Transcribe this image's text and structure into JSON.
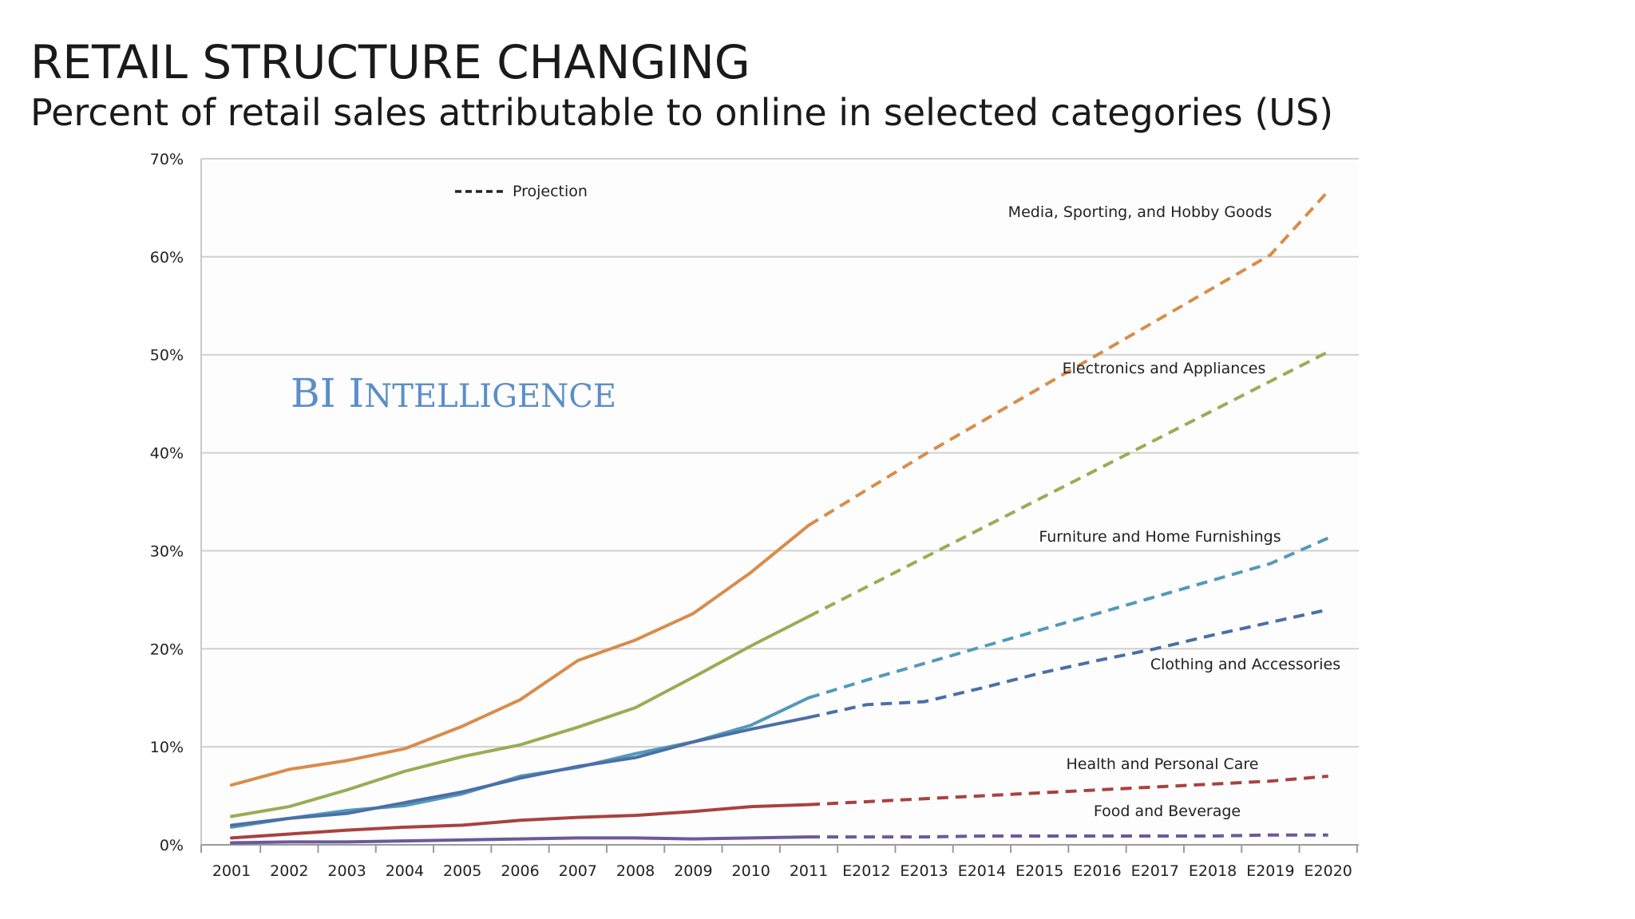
{
  "title": "RETAIL STRUCTURE CHANGING",
  "subtitle": "Percent of retail sales attributable to online in selected categories (US)",
  "watermark": {
    "text_big": "BI",
    "text_small": "Intelligence"
  },
  "chart_data": {
    "type": "line",
    "categories": [
      "2001",
      "2002",
      "2003",
      "2004",
      "2005",
      "2006",
      "2007",
      "2008",
      "2009",
      "2010",
      "2011",
      "E2012",
      "E2013",
      "E2014",
      "E2015",
      "E2016",
      "E2017",
      "E2018",
      "E2019",
      "E2020"
    ],
    "projection_start_index": 10,
    "ylim": [
      0,
      70
    ],
    "yticks": [
      0,
      10,
      20,
      30,
      40,
      50,
      60,
      70
    ],
    "ytick_labels": [
      "0%",
      "10%",
      "20%",
      "30%",
      "40%",
      "50%",
      "60%",
      "70%"
    ],
    "grid": true,
    "legend": {
      "label": "Projection",
      "placement": "top-left"
    },
    "series": [
      {
        "name": "Media, Sporting, and Hobby Goods",
        "color": "#d98c4a",
        "values": [
          6.1,
          7.7,
          8.6,
          9.8,
          12.1,
          14.8,
          18.8,
          20.9,
          23.6,
          27.8,
          32.6,
          36.2,
          39.8,
          43.2,
          46.6,
          50.0,
          53.4,
          56.8,
          60.2,
          66.7
        ]
      },
      {
        "name": "Electronics and Appliances",
        "color": "#98ad55",
        "values": [
          2.9,
          3.9,
          5.6,
          7.5,
          9.0,
          10.2,
          12.0,
          14.0,
          17.1,
          20.3,
          23.3,
          26.3,
          29.3,
          32.3,
          35.3,
          38.3,
          41.3,
          44.3,
          47.3,
          50.3
        ]
      },
      {
        "name": "Furniture and Home Furnishings",
        "color": "#5499b8",
        "values": [
          1.8,
          2.7,
          3.5,
          4.0,
          5.2,
          7.0,
          7.9,
          9.3,
          10.5,
          12.2,
          15.0,
          16.8,
          18.5,
          20.2,
          21.9,
          23.6,
          25.3,
          27.0,
          28.7,
          31.3
        ]
      },
      {
        "name": "Clothing and Accessories",
        "color": "#4b6fa6",
        "values": [
          2.0,
          2.7,
          3.2,
          4.3,
          5.4,
          6.8,
          8.0,
          8.9,
          10.5,
          11.8,
          13.0,
          14.3,
          14.6,
          16.0,
          17.5,
          18.8,
          20.0,
          21.4,
          22.7,
          24.0
        ]
      },
      {
        "name": "Health and Personal Care",
        "color": "#a8423f",
        "values": [
          0.7,
          1.1,
          1.5,
          1.8,
          2.0,
          2.5,
          2.8,
          3.0,
          3.4,
          3.9,
          4.1,
          4.4,
          4.7,
          5.0,
          5.3,
          5.6,
          5.9,
          6.2,
          6.5,
          7.0
        ]
      },
      {
        "name": "Food and Beverage",
        "color": "#6a5a9b",
        "values": [
          0.2,
          0.3,
          0.3,
          0.4,
          0.5,
          0.6,
          0.7,
          0.7,
          0.6,
          0.7,
          0.8,
          0.8,
          0.8,
          0.9,
          0.9,
          0.9,
          0.9,
          0.9,
          1.0,
          1.0
        ]
      }
    ]
  }
}
